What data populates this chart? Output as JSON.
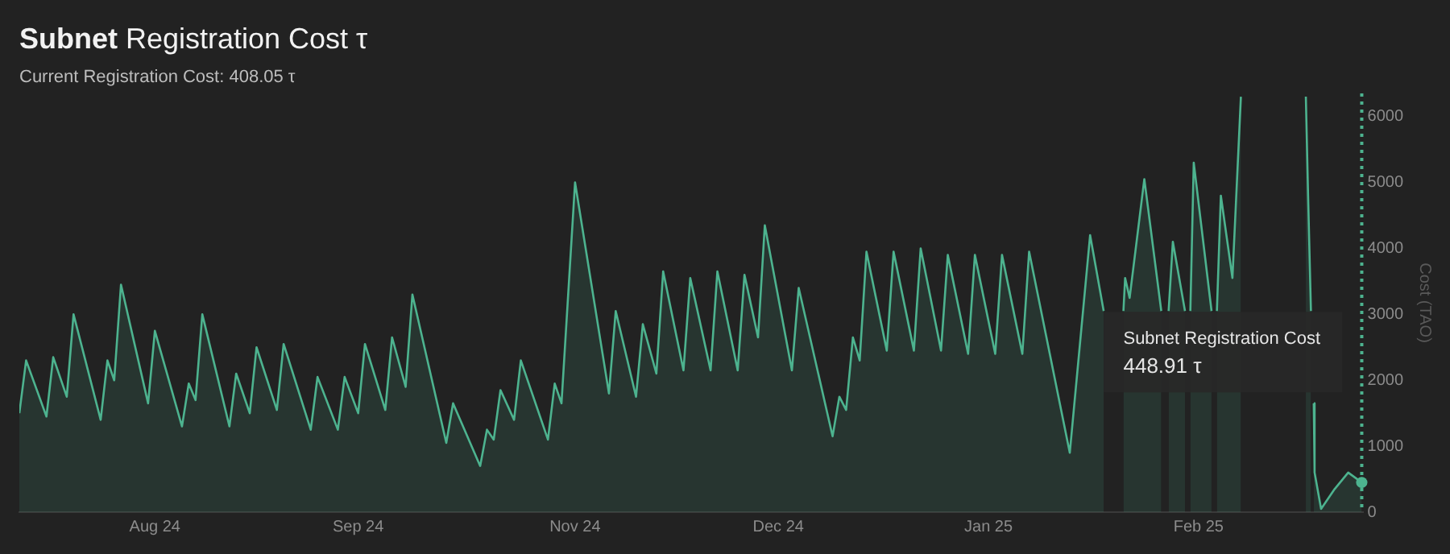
{
  "chart_data": {
    "type": "area",
    "title": "Subnet Registration Cost τ",
    "subtitle": "Current Registration Cost: 408.05 τ",
    "ylabel": "Cost (TAO)",
    "x": [
      "2024-08-11",
      "2024-08-12",
      "2024-08-15",
      "2024-08-16",
      "2024-08-18",
      "2024-08-19",
      "2024-08-23",
      "2024-08-24",
      "2024-08-25",
      "2024-08-26",
      "2024-08-30",
      "2024-08-31",
      "2024-09-04",
      "2024-09-05",
      "2024-09-06",
      "2024-09-07",
      "2024-09-11",
      "2024-09-12",
      "2024-09-14",
      "2024-09-15",
      "2024-09-18",
      "2024-09-19",
      "2024-09-23",
      "2024-09-24",
      "2024-09-27",
      "2024-09-28",
      "2024-09-30",
      "2024-10-01",
      "2024-10-04",
      "2024-10-05",
      "2024-10-07",
      "2024-10-08",
      "2024-10-13",
      "2024-10-14",
      "2024-10-18",
      "2024-10-19",
      "2024-10-20",
      "2024-10-21",
      "2024-10-23",
      "2024-10-24",
      "2024-10-28",
      "2024-10-29",
      "2024-10-30",
      "2024-11-01",
      "2024-11-06",
      "2024-11-07",
      "2024-11-10",
      "2024-11-11",
      "2024-11-13",
      "2024-11-14",
      "2024-11-17",
      "2024-11-18",
      "2024-11-21",
      "2024-11-22",
      "2024-11-25",
      "2024-11-26",
      "2024-11-28",
      "2024-11-29",
      "2024-12-03",
      "2024-12-04",
      "2024-12-09",
      "2024-12-10",
      "2024-12-11",
      "2024-12-12",
      "2024-12-13",
      "2024-12-14",
      "2024-12-17",
      "2024-12-18",
      "2024-12-21",
      "2024-12-22",
      "2024-12-25",
      "2024-12-26",
      "2024-12-29",
      "2024-12-30",
      "2025-01-02",
      "2025-01-03",
      "2025-01-06",
      "2025-01-07",
      "2025-01-13",
      "2025-01-16",
      "2025-01-18",
      "2025-01-19T12:00",
      "2025-01-20T22:00",
      "2025-01-21T04:00",
      "2025-01-21T20:00",
      "2025-01-24",
      "2025-01-26T12:00",
      "2025-01-27T00:00",
      "2025-01-27T14:00",
      "2025-01-28T05:00",
      "2025-01-30",
      "2025-01-30T10:00",
      "2025-01-30T19:00",
      "2025-01-31T07:00",
      "2025-02-02T22:00",
      "2025-02-03T07:00",
      "2025-02-03T17:00",
      "2025-02-04T07:00",
      "2025-02-06",
      "2025-02-07T06:00",
      "2025-02-12",
      "2025-02-16T20:00",
      "2025-02-17T04:00",
      "2025-02-17T14:00",
      "2025-02-17T19:00",
      "2025-02-18",
      "2025-02-18T03:00",
      "2025-02-19T02:00",
      "2025-02-21T02:00",
      "2025-02-23T02:00",
      "2025-02-25T02:00"
    ],
    "values": [
      1500,
      2300,
      1450,
      2350,
      1750,
      3000,
      1400,
      2300,
      2000,
      3450,
      1650,
      2750,
      1300,
      1950,
      1700,
      3000,
      1300,
      2100,
      1500,
      2500,
      1550,
      2550,
      1250,
      2050,
      1250,
      2050,
      1500,
      2550,
      1550,
      2650,
      1900,
      3300,
      1050,
      1650,
      700,
      1250,
      1100,
      1850,
      1400,
      2300,
      1100,
      1950,
      1650,
      5000,
      1800,
      3050,
      1750,
      2850,
      2100,
      3650,
      2150,
      3550,
      2150,
      3650,
      2150,
      3600,
      2650,
      4350,
      2150,
      3400,
      1150,
      1750,
      1550,
      2650,
      2300,
      3950,
      2450,
      3950,
      2450,
      4000,
      2450,
      3900,
      2400,
      3900,
      2400,
      3900,
      2400,
      3950,
      900,
      4200,
      3050,
      null,
      3050,
      3550,
      3250,
      5050,
      3050,
      null,
      3050,
      4100,
      3050,
      null,
      3050,
      5300,
      3050,
      null,
      3050,
      4800,
      3550,
      6300,
      null,
      6300,
      4790,
      3050,
      null,
      1650,
      600,
      50,
      350,
      600,
      450
    ],
    "color": "#4db38f",
    "xlim": [
      "2024-08-11",
      "2025-02-25T05:00"
    ],
    "xticks": [
      {
        "value": "2024-08-31",
        "label": "Aug 24"
      },
      {
        "value": "2024-09-30",
        "label": "Sep 24"
      },
      {
        "value": "2024-11-01",
        "label": "Nov 24"
      },
      {
        "value": "2024-12-01",
        "label": "Dec 24"
      },
      {
        "value": "2025-01-01",
        "label": "Jan 25"
      },
      {
        "value": "2025-02-01",
        "label": "Feb 25"
      }
    ],
    "ylim": [
      0,
      6350
    ],
    "yticks": [
      0,
      1000,
      2000,
      3000,
      4000,
      5000,
      6000
    ],
    "grid": false,
    "legend": false,
    "ref_lines": [
      {
        "axis": "x",
        "value": "2025-02-25T02:00",
        "color": "#4db38f",
        "line_style": "dotted"
      }
    ],
    "annotations": [
      "Subnet Registration Cost\n448.91 τ"
    ]
  }
}
